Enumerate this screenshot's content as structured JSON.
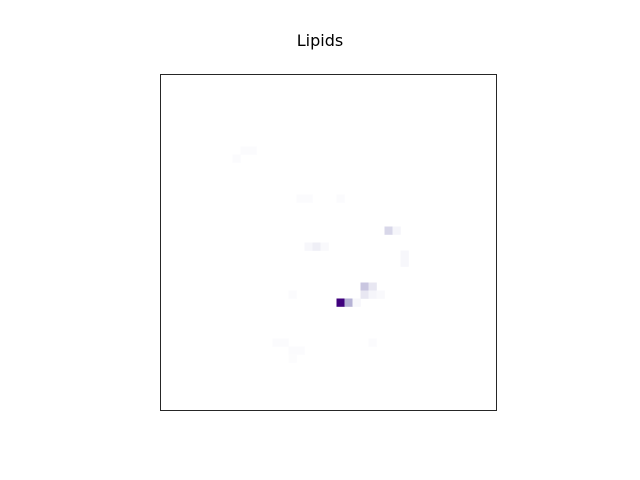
{
  "chart_data": {
    "type": "heatmap",
    "title": "Lipids",
    "xlabel": "",
    "ylabel": "",
    "grid": false,
    "legend": "none",
    "colormap": "Purples",
    "color_low": "#ffffff",
    "color_high": "#3f007d",
    "grid_size": [
      42,
      42
    ],
    "value_range": [
      0,
      1
    ],
    "cells": [
      {
        "row": 9,
        "col": 10,
        "value": 0.02
      },
      {
        "row": 9,
        "col": 11,
        "value": 0.02
      },
      {
        "row": 10,
        "col": 9,
        "value": 0.02
      },
      {
        "row": 15,
        "col": 17,
        "value": 0.02
      },
      {
        "row": 15,
        "col": 18,
        "value": 0.02
      },
      {
        "row": 15,
        "col": 22,
        "value": 0.02
      },
      {
        "row": 19,
        "col": 28,
        "value": 0.2
      },
      {
        "row": 19,
        "col": 29,
        "value": 0.05
      },
      {
        "row": 21,
        "col": 18,
        "value": 0.04
      },
      {
        "row": 21,
        "col": 19,
        "value": 0.08
      },
      {
        "row": 21,
        "col": 20,
        "value": 0.03
      },
      {
        "row": 22,
        "col": 30,
        "value": 0.04
      },
      {
        "row": 23,
        "col": 30,
        "value": 0.04
      },
      {
        "row": 26,
        "col": 25,
        "value": 0.28
      },
      {
        "row": 26,
        "col": 26,
        "value": 0.12
      },
      {
        "row": 27,
        "col": 25,
        "value": 0.12
      },
      {
        "row": 27,
        "col": 26,
        "value": 0.05
      },
      {
        "row": 27,
        "col": 27,
        "value": 0.03
      },
      {
        "row": 27,
        "col": 16,
        "value": 0.02
      },
      {
        "row": 28,
        "col": 22,
        "value": 1.0
      },
      {
        "row": 28,
        "col": 23,
        "value": 0.38
      },
      {
        "row": 28,
        "col": 24,
        "value": 0.04
      },
      {
        "row": 33,
        "col": 14,
        "value": 0.02
      },
      {
        "row": 33,
        "col": 15,
        "value": 0.02
      },
      {
        "row": 33,
        "col": 26,
        "value": 0.02
      },
      {
        "row": 34,
        "col": 16,
        "value": 0.02
      },
      {
        "row": 34,
        "col": 17,
        "value": 0.02
      },
      {
        "row": 35,
        "col": 16,
        "value": 0.015
      }
    ]
  }
}
